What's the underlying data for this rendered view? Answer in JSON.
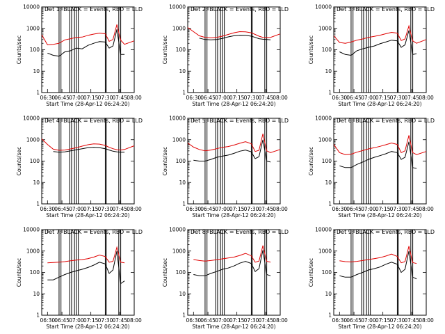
{
  "figure": {
    "xlabel": "Start Time (28-Apr-12 06:24:20)",
    "ylabel": "Counts/sec"
  },
  "chart_data": [
    {
      "type": "line",
      "title": "Det 1: BLACK = Events, RED = LLD",
      "xlabel": "Start Time (28-Apr-12 06:24:20)",
      "ylabel": "Counts/sec",
      "yscale": "log",
      "ylim": [
        1,
        10000
      ],
      "x_tick_labels": [
        "06:30",
        "06:45",
        "07:00",
        "07:15",
        "07:30",
        "07:45",
        "08:00"
      ],
      "y_tick_labels": [
        "1",
        "10",
        "100",
        "1000",
        "10000"
      ],
      "x": [
        "06:24",
        "06:30",
        "06:36",
        "06:42",
        "06:48",
        "06:54",
        "07:00",
        "07:06",
        "07:12",
        "07:18",
        "07:24",
        "07:30",
        "07:34",
        "07:38",
        "07:42",
        "07:46",
        "07:50",
        "08:00"
      ],
      "series": [
        {
          "name": "Events",
          "color": "#000000",
          "values": [
            null,
            70,
            55,
            50,
            80,
            90,
            120,
            110,
            160,
            200,
            240,
            230,
            120,
            150,
            900,
            60,
            60,
            null
          ]
        },
        {
          "name": "LLD",
          "color": "#e00000",
          "values": [
            500,
            170,
            180,
            200,
            290,
            330,
            380,
            390,
            470,
            540,
            600,
            560,
            250,
            300,
            1500,
            280,
            180,
            260
          ]
        }
      ]
    },
    {
      "type": "line",
      "title": "Det 2: BLACK = Events, RED = LLD",
      "xlabel": "Start Time (28-Apr-12 06:24:20)",
      "ylabel": "Counts/sec",
      "yscale": "log",
      "ylim": [
        1,
        10000
      ],
      "x_tick_labels": [
        "06:30",
        "06:45",
        "07:00",
        "07:15",
        "07:30",
        "07:45",
        "08:00"
      ],
      "y_tick_labels": [
        "1",
        "10",
        "100",
        "1000",
        "10000"
      ],
      "x": [
        "06:24",
        "06:30",
        "06:36",
        "06:42",
        "06:48",
        "06:54",
        "07:00",
        "07:06",
        "07:12",
        "07:18",
        "07:24",
        "07:30",
        "07:34",
        "07:38",
        "07:42",
        "07:46",
        "07:50",
        "08:00"
      ],
      "series": [
        {
          "name": "Events",
          "color": "#000000",
          "values": [
            null,
            null,
            350,
            300,
            290,
            300,
            340,
            400,
            450,
            480,
            470,
            430,
            380,
            330,
            310,
            300,
            290,
            null
          ]
        },
        {
          "name": "LLD",
          "color": "#e00000",
          "values": [
            1100,
            700,
            450,
            380,
            360,
            380,
            430,
            520,
            620,
            700,
            690,
            620,
            520,
            430,
            380,
            370,
            380,
            550
          ]
        }
      ]
    },
    {
      "type": "line",
      "title": "Det 3: BLACK = Events, RED = LLD",
      "xlabel": "Start Time (28-Apr-12 06:24:20)",
      "ylabel": "Counts/sec",
      "yscale": "log",
      "ylim": [
        1,
        10000
      ],
      "x_tick_labels": [
        "06:30",
        "06:45",
        "07:00",
        "07:15",
        "07:30",
        "07:45",
        "08:00"
      ],
      "y_tick_labels": [
        "1",
        "10",
        "100",
        "1000",
        "10000"
      ],
      "x": [
        "06:24",
        "06:30",
        "06:36",
        "06:42",
        "06:48",
        "06:54",
        "07:00",
        "07:06",
        "07:12",
        "07:18",
        "07:24",
        "07:30",
        "07:34",
        "07:38",
        "07:42",
        "07:46",
        "07:50",
        "08:00"
      ],
      "series": [
        {
          "name": "Events",
          "color": "#000000",
          "values": [
            null,
            80,
            60,
            55,
            90,
            110,
            130,
            150,
            190,
            230,
            280,
            260,
            130,
            170,
            800,
            60,
            65,
            null
          ]
        },
        {
          "name": "LLD",
          "color": "#e00000",
          "values": [
            450,
            220,
            200,
            230,
            280,
            320,
            380,
            420,
            480,
            560,
            650,
            600,
            270,
            320,
            1300,
            260,
            200,
            300
          ]
        }
      ]
    },
    {
      "type": "line",
      "title": "Det 4: BLACK = Events, RED = LLD",
      "xlabel": "Start Time (28-Apr-12 06:24:20)",
      "ylabel": "Counts/sec",
      "yscale": "log",
      "ylim": [
        1,
        10000
      ],
      "x_tick_labels": [
        "06:30",
        "06:45",
        "07:00",
        "07:15",
        "07:30",
        "07:45",
        "08:00"
      ],
      "y_tick_labels": [
        "1",
        "10",
        "100",
        "1000",
        "10000"
      ],
      "x": [
        "06:24",
        "06:30",
        "06:36",
        "06:42",
        "06:48",
        "06:54",
        "07:00",
        "07:06",
        "07:12",
        "07:18",
        "07:24",
        "07:30",
        "07:34",
        "07:38",
        "07:42",
        "07:46",
        "07:50",
        "08:00"
      ],
      "series": [
        {
          "name": "Events",
          "color": "#000000",
          "values": [
            null,
            null,
            280,
            260,
            270,
            300,
            340,
            380,
            420,
            440,
            420,
            380,
            330,
            290,
            270,
            260,
            260,
            null
          ]
        },
        {
          "name": "LLD",
          "color": "#e00000",
          "values": [
            1100,
            600,
            360,
            320,
            330,
            370,
            420,
            500,
            580,
            640,
            620,
            540,
            440,
            380,
            340,
            330,
            350,
            520
          ]
        }
      ]
    },
    {
      "type": "line",
      "title": "Det 5: BLACK = Events, RED = LLD",
      "xlabel": "Start Time (28-Apr-12 06:24:20)",
      "ylabel": "Counts/sec",
      "yscale": "log",
      "ylim": [
        1,
        10000
      ],
      "x_tick_labels": [
        "06:30",
        "06:45",
        "07:00",
        "07:15",
        "07:30",
        "07:45",
        "08:00"
      ],
      "y_tick_labels": [
        "1",
        "10",
        "100",
        "1000",
        "10000"
      ],
      "x": [
        "06:24",
        "06:30",
        "06:36",
        "06:42",
        "06:48",
        "06:54",
        "07:00",
        "07:06",
        "07:12",
        "07:18",
        "07:24",
        "07:30",
        "07:34",
        "07:38",
        "07:42",
        "07:46",
        "07:50",
        "08:00"
      ],
      "series": [
        {
          "name": "Events",
          "color": "#000000",
          "values": [
            null,
            110,
            100,
            100,
            120,
            150,
            170,
            190,
            230,
            290,
            330,
            270,
            130,
            160,
            1000,
            100,
            90,
            null
          ]
        },
        {
          "name": "LLD",
          "color": "#e00000",
          "values": [
            700,
            450,
            350,
            300,
            330,
            380,
            440,
            480,
            560,
            680,
            800,
            650,
            280,
            320,
            1900,
            300,
            250,
            350
          ]
        }
      ]
    },
    {
      "type": "line",
      "title": "Det 6: BLACK = Events, RED = LLD",
      "xlabel": "Start Time (28-Apr-12 06:24:20)",
      "ylabel": "Counts/sec",
      "yscale": "log",
      "ylim": [
        1,
        10000
      ],
      "x_tick_labels": [
        "06:30",
        "06:45",
        "07:00",
        "07:15",
        "07:30",
        "07:45",
        "08:00"
      ],
      "y_tick_labels": [
        "1",
        "10",
        "100",
        "1000",
        "10000"
      ],
      "x": [
        "06:24",
        "06:30",
        "06:36",
        "06:42",
        "06:48",
        "06:54",
        "07:00",
        "07:06",
        "07:12",
        "07:18",
        "07:24",
        "07:30",
        "07:34",
        "07:38",
        "07:42",
        "07:46",
        "07:50",
        "08:00"
      ],
      "series": [
        {
          "name": "Events",
          "color": "#000000",
          "values": [
            null,
            60,
            50,
            50,
            70,
            90,
            120,
            150,
            180,
            220,
            280,
            250,
            120,
            150,
            800,
            50,
            45,
            null
          ]
        },
        {
          "name": "LLD",
          "color": "#e00000",
          "values": [
            600,
            250,
            200,
            210,
            260,
            310,
            370,
            420,
            490,
            580,
            700,
            600,
            250,
            300,
            1600,
            250,
            200,
            280
          ]
        }
      ]
    },
    {
      "type": "line",
      "title": "Det 7: BLACK = Events, RED = LLD",
      "xlabel": "Start Time (28-Apr-12 06:24:20)",
      "ylabel": "Counts/sec",
      "yscale": "log",
      "ylim": [
        1,
        10000
      ],
      "x_tick_labels": [
        "06:30",
        "06:45",
        "07:00",
        "07:15",
        "07:30",
        "07:45",
        "08:00"
      ],
      "y_tick_labels": [
        "1",
        "10",
        "100",
        "1000",
        "10000"
      ],
      "x": [
        "06:24",
        "06:30",
        "06:36",
        "06:42",
        "06:48",
        "06:54",
        "07:00",
        "07:06",
        "07:12",
        "07:18",
        "07:24",
        "07:30",
        "07:34",
        "07:38",
        "07:42",
        "07:46",
        "07:50",
        "08:00"
      ],
      "series": [
        {
          "name": "Events",
          "color": "#000000",
          "values": [
            null,
            45,
            45,
            60,
            80,
            100,
            120,
            140,
            170,
            220,
            300,
            250,
            90,
            130,
            1000,
            30,
            40,
            null
          ]
        },
        {
          "name": "LLD",
          "color": "#e00000",
          "values": [
            null,
            280,
            290,
            300,
            320,
            350,
            380,
            400,
            440,
            520,
            650,
            550,
            300,
            330,
            1500,
            300,
            280,
            null
          ]
        }
      ]
    },
    {
      "type": "line",
      "title": "Det 8: BLACK = Events, RED = LLD",
      "xlabel": "Start Time (28-Apr-12 06:24:20)",
      "ylabel": "Counts/sec",
      "yscale": "log",
      "ylim": [
        1,
        10000
      ],
      "x_tick_labels": [
        "06:30",
        "06:45",
        "07:00",
        "07:15",
        "07:30",
        "07:45",
        "08:00"
      ],
      "y_tick_labels": [
        "1",
        "10",
        "100",
        "1000",
        "10000"
      ],
      "x": [
        "06:24",
        "06:30",
        "06:36",
        "06:42",
        "06:48",
        "06:54",
        "07:00",
        "07:06",
        "07:12",
        "07:18",
        "07:24",
        "07:30",
        "07:34",
        "07:38",
        "07:42",
        "07:46",
        "07:50",
        "08:00"
      ],
      "series": [
        {
          "name": "Events",
          "color": "#000000",
          "values": [
            null,
            80,
            70,
            70,
            90,
            110,
            140,
            160,
            200,
            270,
            330,
            260,
            110,
            150,
            1100,
            80,
            70,
            null
          ]
        },
        {
          "name": "LLD",
          "color": "#e00000",
          "values": [
            null,
            400,
            360,
            340,
            360,
            390,
            430,
            470,
            520,
            620,
            780,
            600,
            300,
            340,
            1800,
            330,
            300,
            null
          ]
        }
      ]
    },
    {
      "type": "line",
      "title": "Det 9: BLACK = Events, RED = LLD",
      "xlabel": "Start Time (28-Apr-12 06:24:20)",
      "ylabel": "Counts/sec",
      "yscale": "log",
      "ylim": [
        1,
        10000
      ],
      "x_tick_labels": [
        "06:30",
        "06:45",
        "07:00",
        "07:15",
        "07:30",
        "07:45",
        "08:00"
      ],
      "y_tick_labels": [
        "1",
        "10",
        "100",
        "1000",
        "10000"
      ],
      "x": [
        "06:24",
        "06:30",
        "06:36",
        "06:42",
        "06:48",
        "06:54",
        "07:00",
        "07:06",
        "07:12",
        "07:18",
        "07:24",
        "07:30",
        "07:34",
        "07:38",
        "07:42",
        "07:46",
        "07:50",
        "08:00"
      ],
      "series": [
        {
          "name": "Events",
          "color": "#000000",
          "values": [
            null,
            70,
            60,
            60,
            80,
            100,
            130,
            150,
            180,
            240,
            300,
            240,
            100,
            140,
            1000,
            60,
            50,
            null
          ]
        },
        {
          "name": "LLD",
          "color": "#e00000",
          "values": [
            null,
            350,
            320,
            310,
            330,
            360,
            400,
            440,
            490,
            580,
            720,
            560,
            280,
            320,
            1700,
            290,
            260,
            null
          ]
        }
      ]
    }
  ]
}
